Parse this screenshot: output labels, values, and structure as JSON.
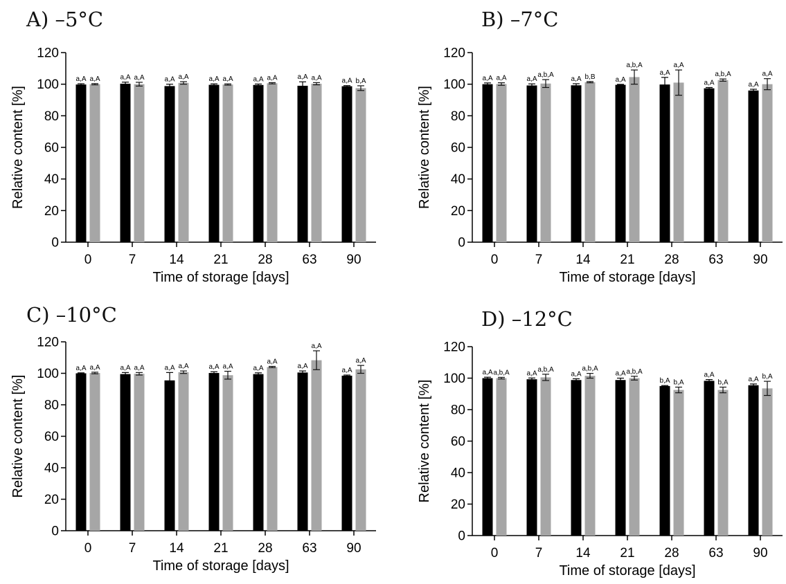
{
  "colors": {
    "series1": "#000000",
    "series2": "#a6a6a6"
  },
  "chart_data": [
    {
      "type": "bar",
      "title": "A) –5°C",
      "xlabel": "Time of storage [days]",
      "ylabel": "Relative content [%]",
      "categories": [
        "0",
        "7",
        "14",
        "21",
        "28",
        "63",
        "90"
      ],
      "ylim": [
        0,
        120
      ],
      "yticks": [
        0,
        20,
        40,
        60,
        80,
        100,
        120
      ],
      "grid": false,
      "series": [
        {
          "values": [
            99.8,
            100.3,
            98.8,
            99.6,
            99.5,
            99.0,
            98.7
          ],
          "errors": [
            0.5,
            1.0,
            1.2,
            0.6,
            0.6,
            2.5,
            0.4
          ],
          "labels": [
            "a,A",
            "a,A",
            "a,A",
            "a,A",
            "a,A",
            "a,A",
            "a,A"
          ]
        },
        {
          "values": [
            100.0,
            100.0,
            100.8,
            99.8,
            100.6,
            100.3,
            97.5
          ],
          "errors": [
            0.4,
            1.2,
            0.8,
            0.4,
            0.4,
            0.7,
            1.5
          ],
          "labels": [
            "a,A",
            "a,A",
            "a,A",
            "a,A",
            "a,A",
            "a,A",
            "b,A"
          ]
        }
      ]
    },
    {
      "type": "bar",
      "title": "B) –7°C",
      "xlabel": "Time of storage [days]",
      "ylabel": "Relative content [%]",
      "categories": [
        "0",
        "7",
        "14",
        "21",
        "28",
        "63",
        "90"
      ],
      "ylim": [
        0,
        120
      ],
      "yticks": [
        0,
        20,
        40,
        60,
        80,
        100,
        120
      ],
      "grid": false,
      "series": [
        {
          "values": [
            100.0,
            99.2,
            99.3,
            99.6,
            99.8,
            97.4,
            96.0
          ],
          "errors": [
            0.8,
            1.0,
            1.0,
            0.3,
            4.5,
            0.5,
            0.8
          ],
          "labels": [
            "a,A",
            "a,A",
            "a,A",
            "a,A",
            "a,A",
            "a,A",
            "a,A"
          ]
        },
        {
          "values": [
            100.1,
            100.4,
            101.3,
            104.5,
            101.0,
            102.6,
            100.0
          ],
          "errors": [
            0.8,
            2.5,
            0.4,
            4.5,
            8.0,
            0.7,
            3.5
          ],
          "labels": [
            "a,A",
            "a,b,A",
            "b,B",
            "a,b,A",
            "a,A",
            "a,b,A",
            "a,A"
          ]
        }
      ]
    },
    {
      "type": "bar",
      "title": "C) –10°C",
      "xlabel": "Time of storage [days]",
      "ylabel": "Relative content [%]",
      "categories": [
        "0",
        "7",
        "14",
        "21",
        "28",
        "63",
        "90"
      ],
      "ylim": [
        0,
        120
      ],
      "yticks": [
        0,
        20,
        40,
        60,
        80,
        100,
        120
      ],
      "grid": false,
      "series": [
        {
          "values": [
            100.0,
            99.5,
            95.5,
            100.2,
            99.5,
            100.5,
            98.5
          ],
          "errors": [
            0.3,
            1.0,
            5.0,
            0.8,
            0.8,
            1.0,
            0.4
          ],
          "labels": [
            "a,A",
            "a,A",
            "a,A",
            "a,A",
            "a,A",
            "a,A",
            "a,A"
          ]
        },
        {
          "values": [
            100.2,
            99.7,
            100.7,
            98.8,
            104.0,
            108.3,
            102.5
          ],
          "errors": [
            0.5,
            0.8,
            0.8,
            2.5,
            0.4,
            6.0,
            2.5
          ],
          "labels": [
            "a,A",
            "a,A",
            "a,A",
            "a,A",
            "a,A",
            "a,A",
            "a,A"
          ]
        }
      ]
    },
    {
      "type": "bar",
      "title": "D) –12°C",
      "xlabel": "Time of storage [days]",
      "ylabel": "Relative content [%]",
      "categories": [
        "0",
        "7",
        "14",
        "21",
        "28",
        "63",
        "90"
      ],
      "ylim": [
        0,
        120
      ],
      "yticks": [
        0,
        20,
        40,
        60,
        80,
        100,
        120
      ],
      "grid": false,
      "series": [
        {
          "values": [
            100.0,
            99.3,
            98.8,
            98.8,
            95.0,
            98.3,
            95.5
          ],
          "errors": [
            0.6,
            0.8,
            0.8,
            1.2,
            0.3,
            0.8,
            0.8
          ],
          "labels": [
            "a,A",
            "a,A",
            "a,A",
            "a,A",
            "b,A",
            "a,A",
            "a,A"
          ]
        },
        {
          "values": [
            100.0,
            100.5,
            101.5,
            100.0,
            92.5,
            92.5,
            93.5
          ],
          "errors": [
            0.5,
            2.0,
            1.5,
            1.2,
            1.8,
            1.8,
            4.5
          ],
          "labels": [
            "a,b,A",
            "a,b,A",
            "a,b,A",
            "a,b,A",
            "b,A",
            "b,A",
            "b,A"
          ]
        }
      ]
    }
  ]
}
